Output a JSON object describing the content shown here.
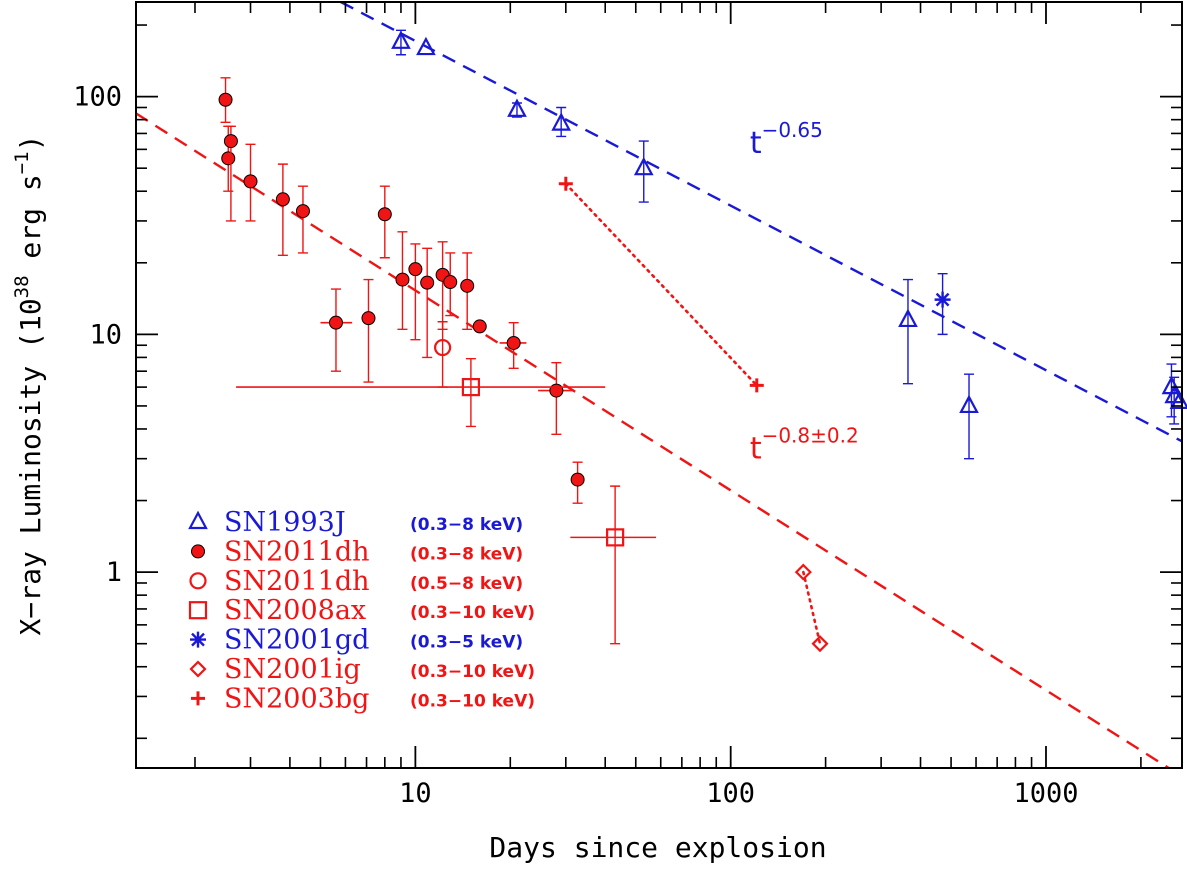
{
  "chart_data": {
    "type": "scatter",
    "title": "",
    "xlabel": "Days since explosion",
    "ylabel_parts": {
      "base": "X−ray Luminosity (10",
      "exp1": "38",
      "mid": " erg s",
      "exp2": "−1",
      "end": ")"
    },
    "x_scale": "log",
    "y_scale": "log",
    "xlim": [
      1.3,
      2700
    ],
    "ylim": [
      0.15,
      250
    ],
    "x_ticks": [
      10,
      100,
      1000
    ],
    "x_tick_labels": [
      "10",
      "100",
      "1000"
    ],
    "y_ticks": [
      1,
      10,
      100
    ],
    "y_tick_labels": [
      "1",
      "10",
      "100"
    ],
    "grid": false,
    "legend_position": "bottom-left",
    "colors": {
      "blue": "#1a1ad6",
      "red": "#f01414",
      "axis": "#000000"
    },
    "series": [
      {
        "name": "SN1993J",
        "band": "(0.3−8 keV)",
        "color": "#1a1ad6",
        "marker": "triangle",
        "points": [
          {
            "x": 9,
            "y": 170,
            "ylo": 150,
            "yhi": 190
          },
          {
            "x": 10.8,
            "y": 160
          },
          {
            "x": 21,
            "y": 88,
            "ylo": 82,
            "yhi": 94
          },
          {
            "x": 29,
            "y": 77,
            "ylo": 68,
            "yhi": 90
          },
          {
            "x": 53,
            "y": 50,
            "ylo": 36,
            "yhi": 65
          },
          {
            "x": 365,
            "y": 11.5,
            "ylo": 6.2,
            "yhi": 17
          },
          {
            "x": 570,
            "y": 5,
            "ylo": 3,
            "yhi": 6.8
          },
          {
            "x": 2500,
            "y": 6,
            "ylo": 4.5,
            "yhi": 7.5
          },
          {
            "x": 2550,
            "y": 5.5,
            "ylo": 4.2,
            "yhi": 6.6
          },
          {
            "x": 2650,
            "y": 5.2
          }
        ]
      },
      {
        "name": "SN2011dh",
        "band": "(0.3−8 keV)",
        "color": "#f01414",
        "marker": "filled-circle",
        "points": [
          {
            "x": 2.5,
            "y": 97,
            "ylo": 78,
            "yhi": 120
          },
          {
            "x": 2.55,
            "y": 55,
            "ylo": 40,
            "yhi": 75
          },
          {
            "x": 2.6,
            "y": 65,
            "ylo": 30,
            "yhi": 75
          },
          {
            "x": 3.0,
            "y": 44,
            "ylo": 30,
            "yhi": 63
          },
          {
            "x": 3.8,
            "y": 37,
            "ylo": 21.5,
            "yhi": 52
          },
          {
            "x": 4.4,
            "y": 33,
            "ylo": 22,
            "yhi": 42
          },
          {
            "x": 5.6,
            "y": 11.2,
            "ylo": 7,
            "yhi": 15.5,
            "xlo": 5.0,
            "xhi": 6.3
          },
          {
            "x": 7.1,
            "y": 11.7,
            "ylo": 6.3,
            "yhi": 17
          },
          {
            "x": 8.0,
            "y": 32,
            "ylo": 21,
            "yhi": 42
          },
          {
            "x": 9.1,
            "y": 17,
            "ylo": 10.5,
            "yhi": 27
          },
          {
            "x": 10.0,
            "y": 18.8,
            "ylo": 9.5,
            "yhi": 24
          },
          {
            "x": 10.9,
            "y": 16.5,
            "ylo": 8,
            "yhi": 23
          },
          {
            "x": 12.2,
            "y": 17.8,
            "ylo": 10.5,
            "yhi": 24.5
          },
          {
            "x": 12.9,
            "y": 16.6,
            "ylo": 12,
            "yhi": 22
          },
          {
            "x": 14.6,
            "y": 16,
            "ylo": 10.5,
            "yhi": 22
          },
          {
            "x": 16.0,
            "y": 10.8
          },
          {
            "x": 20.5,
            "y": 9.2,
            "ylo": 7.2,
            "yhi": 11.2,
            "xlo": 18.5,
            "xhi": 22.5
          },
          {
            "x": 28,
            "y": 5.8,
            "ylo": 3.8,
            "yhi": 7.6,
            "xlo": 24.5,
            "xhi": 31.5
          },
          {
            "x": 32.7,
            "y": 2.45,
            "ylo": 1.95,
            "yhi": 2.9
          }
        ]
      },
      {
        "name": "SN2011dh",
        "band": "(0.5−8 keV)",
        "color": "#f01414",
        "marker": "open-circle",
        "points": [
          {
            "x": 12.2,
            "y": 8.8,
            "ylo": 6.0,
            "yhi": 11.3
          }
        ]
      },
      {
        "name": "SN2008ax",
        "band": "(0.3−10 keV)",
        "color": "#f01414",
        "marker": "square",
        "points": [
          {
            "x": 15,
            "y": 6.0,
            "ylo": 4.1,
            "yhi": 7.9,
            "xlo": 2.7,
            "xhi": 40
          },
          {
            "x": 43,
            "y": 1.4,
            "ylo": 0.5,
            "yhi": 2.3,
            "xlo": 31,
            "xhi": 58
          }
        ]
      },
      {
        "name": "SN2001gd",
        "band": "(0.3−5 keV)",
        "color": "#1a1ad6",
        "marker": "asterisk",
        "points": [
          {
            "x": 470,
            "y": 14,
            "ylo": 10,
            "yhi": 18
          }
        ]
      },
      {
        "name": "SN2001ig",
        "band": "(0.3−10 keV)",
        "color": "#f01414",
        "marker": "diamond",
        "connected": true,
        "points": [
          {
            "x": 170,
            "y": 1.0
          },
          {
            "x": 192,
            "y": 0.5
          }
        ]
      },
      {
        "name": "SN2003bg",
        "band": "(0.3−10 keV)",
        "color": "#f01414",
        "marker": "plus",
        "connected": true,
        "points": [
          {
            "x": 30,
            "y": 43
          },
          {
            "x": 121,
            "y": 6.1
          }
        ]
      }
    ],
    "fits": [
      {
        "label": "t",
        "exp": "−0.65",
        "color": "#1a1ad6",
        "x": [
          5.8,
          2700
        ],
        "y": [
          250,
          3.55
        ],
        "label_at": [
          115,
          58
        ]
      },
      {
        "label": "t",
        "exp": "−0.8±0.2",
        "color": "#f01414",
        "x": [
          1.3,
          2450
        ],
        "y": [
          85,
          0.15
        ],
        "label_at": [
          115,
          3.0
        ]
      }
    ]
  }
}
